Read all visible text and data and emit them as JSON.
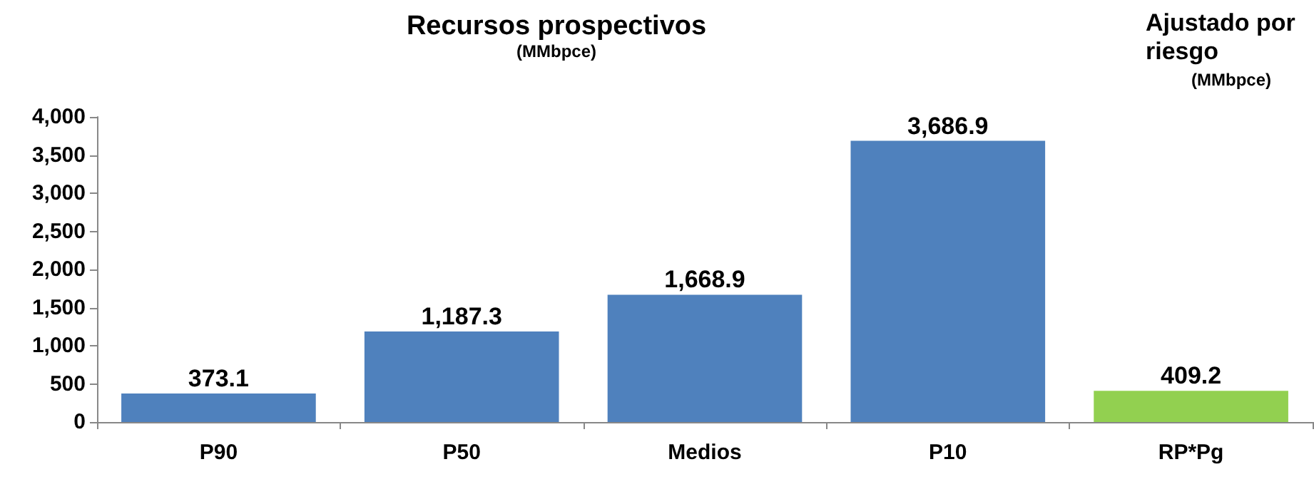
{
  "chart_data": {
    "type": "bar",
    "title": "Recursos prospectivos",
    "subtitle": "(MMbpce)",
    "annotations": [
      "Ajustado por riesgo",
      "(MMbpce)"
    ],
    "categories": [
      "P90",
      "P50",
      "Medios",
      "P10",
      "RP*Pg"
    ],
    "values": [
      373.1,
      1187.3,
      1668.9,
      3686.9,
      409.2
    ],
    "colors": [
      "#4f81bd",
      "#4f81bd",
      "#4f81bd",
      "#4f81bd",
      "#92d050"
    ],
    "value_labels": [
      "373.1",
      "1,187.3",
      "1,668.9",
      "3,686.9",
      "409.2"
    ],
    "ylim": [
      0,
      4000
    ],
    "yticks": [
      {
        "value": 0,
        "label": "0"
      },
      {
        "value": 500,
        "label": "500"
      },
      {
        "value": 1000,
        "label": "1,000"
      },
      {
        "value": 1500,
        "label": "1,500"
      },
      {
        "value": 2000,
        "label": "2,000"
      },
      {
        "value": 2500,
        "label": "2,500"
      },
      {
        "value": 3000,
        "label": "3,000"
      },
      {
        "value": 3500,
        "label": "3,500"
      },
      {
        "value": 4000,
        "label": "4,000"
      }
    ],
    "grid": false
  }
}
